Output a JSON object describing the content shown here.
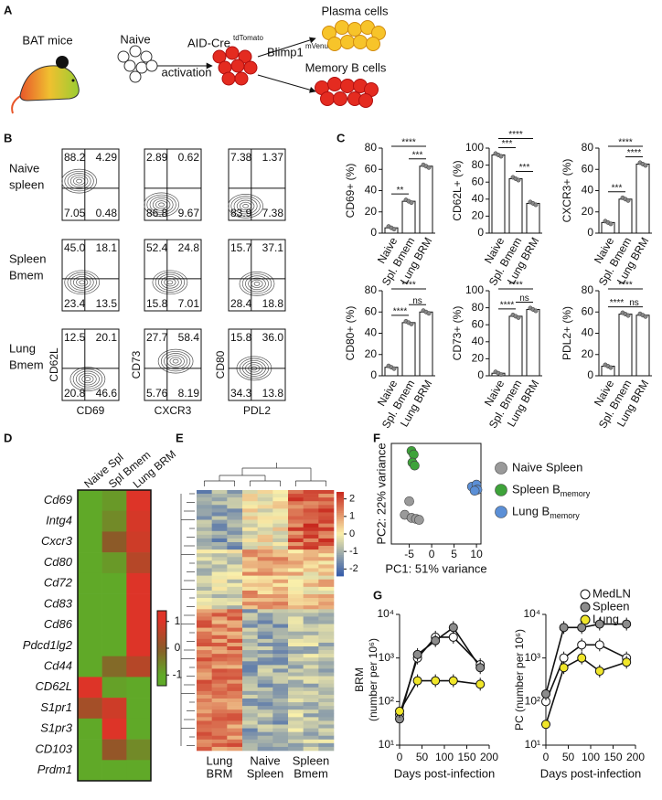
{
  "panel_a": {
    "label": "A",
    "mouse": "BAT mice",
    "naive": "Naive",
    "aid_cre": "AID-Cre",
    "aid_cre_sup": "tdTomato",
    "activation": "activation",
    "blimp": "Blimp1",
    "blimp_sup": "mVenus",
    "plasma": "Plasma cells",
    "memory": "Memory B cells"
  },
  "panel_b": {
    "label": "B",
    "rows": [
      {
        "name": [
          "Naive",
          "spleen"
        ],
        "plots": [
          [
            "88.2",
            "4.29",
            "7.05",
            "0.48"
          ],
          [
            "2.89",
            "0.62",
            "86.8",
            "9.67"
          ],
          [
            "7.38",
            "1.37",
            "83.9",
            "7.38"
          ]
        ]
      },
      {
        "name": [
          "Spleen",
          "Bmem"
        ],
        "plots": [
          [
            "45.0",
            "18.1",
            "23.4",
            "13.5"
          ],
          [
            "52.4",
            "24.8",
            "15.8",
            "7.01"
          ],
          [
            "15.7",
            "37.1",
            "28.4",
            "18.8"
          ]
        ]
      },
      {
        "name": [
          "Lung",
          "Bmem"
        ],
        "plots": [
          [
            "12.5",
            "20.1",
            "20.8",
            "46.6"
          ],
          [
            "27.7",
            "58.4",
            "5.76",
            "8.19"
          ],
          [
            "15.8",
            "36.0",
            "34.3",
            "13.8"
          ]
        ]
      }
    ],
    "y_labels": [
      "CD62L",
      "CD73",
      "CD80"
    ],
    "x_labels": [
      "CD69",
      "CXCR3",
      "PDL2"
    ]
  },
  "panel_c": {
    "label": "C",
    "charts": [
      {
        "type": "bar",
        "ylabel": "CD69+ (%)",
        "categories": [
          "Naive",
          "Spl. Bmem",
          "Lung BRM"
        ],
        "values": [
          5,
          30,
          63
        ],
        "ylim": [
          0,
          80
        ],
        "yticks": [
          0,
          20,
          40,
          60,
          80
        ],
        "color": "#ffffff",
        "significance": [
          "**",
          "***",
          "****"
        ]
      },
      {
        "type": "bar",
        "ylabel": "CD62L+ (%)",
        "categories": [
          "Naive",
          "Spl. Bmem",
          "Lung BRM"
        ],
        "values": [
          92,
          64,
          35
        ],
        "ylim": [
          0,
          100
        ],
        "yticks": [
          0,
          20,
          40,
          60,
          80,
          100
        ],
        "color": "#ffffff",
        "significance": [
          "***",
          "***",
          "****"
        ]
      },
      {
        "type": "bar",
        "ylabel": "CXCR3+ (%)",
        "categories": [
          "Naive",
          "Spl. Bmem",
          "Lung BRM"
        ],
        "values": [
          10,
          32,
          65
        ],
        "ylim": [
          0,
          80
        ],
        "yticks": [
          0,
          20,
          40,
          60,
          80
        ],
        "color": "#ffffff",
        "significance": [
          "***",
          "****",
          "****"
        ]
      },
      {
        "type": "bar",
        "ylabel": "CD80+ (%)",
        "categories": [
          "Naive",
          "Spl. Bmem",
          "Lung BRM"
        ],
        "values": [
          8,
          50,
          60
        ],
        "ylim": [
          0,
          80
        ],
        "yticks": [
          0,
          20,
          40,
          60,
          80
        ],
        "color": "#ffffff",
        "significance": [
          "****",
          "ns",
          "****"
        ]
      },
      {
        "type": "bar",
        "ylabel": "CD73+ (%)",
        "categories": [
          "Naive",
          "Spl. Bmem",
          "Lung BRM"
        ],
        "values": [
          3,
          70,
          78
        ],
        "ylim": [
          0,
          100
        ],
        "yticks": [
          0,
          20,
          40,
          60,
          80,
          100
        ],
        "color": "#ffffff",
        "significance": [
          "****",
          "ns",
          "****"
        ]
      },
      {
        "type": "bar",
        "ylabel": "PDL2+ (%)",
        "categories": [
          "Naive",
          "Spl. Bmem",
          "Lung BRM"
        ],
        "values": [
          9,
          58,
          57
        ],
        "ylim": [
          0,
          80
        ],
        "yticks": [
          0,
          20,
          40,
          60,
          80
        ],
        "color": "#ffffff",
        "significance": [
          "****",
          "ns",
          "****"
        ]
      }
    ]
  },
  "panel_d": {
    "label": "D",
    "type": "heatmap",
    "columns": [
      "Naive Spl",
      "Spl Bmem",
      "Lung BRM"
    ],
    "genes": [
      "Cd69",
      "Intg4",
      "Cxcr3",
      "Cd80",
      "Cd72",
      "Cd83",
      "Cd86",
      "Pdcd1lg2",
      "Cd44",
      "CD62L",
      "S1pr1",
      "S1pr3",
      "CD103",
      "Prdm1"
    ],
    "values": [
      [
        -1,
        -0.8,
        1
      ],
      [
        -1,
        -0.6,
        0.9
      ],
      [
        -1,
        0,
        0.8
      ],
      [
        -1,
        -0.8,
        0.5
      ],
      [
        -1,
        -1,
        1
      ],
      [
        -1,
        -1,
        1
      ],
      [
        -1,
        -1,
        1
      ],
      [
        -1,
        -1,
        1
      ],
      [
        -1,
        -0.2,
        0.5
      ],
      [
        1,
        -0.9,
        -1
      ],
      [
        0.3,
        0.8,
        -1
      ],
      [
        -1,
        1,
        -1
      ],
      [
        -1,
        0.1,
        -0.6
      ],
      [
        -1,
        -1,
        -1
      ]
    ],
    "clim": [
      -1.4,
      1.4
    ],
    "colorbar_ticks": [
      1,
      0,
      -1
    ]
  },
  "panel_e": {
    "label": "E",
    "columns": [
      [
        "Lung",
        "BRM"
      ],
      [
        "Naive",
        "Spleen"
      ],
      [
        "Spleen",
        "Bmem"
      ]
    ],
    "clim": [
      -2.4,
      2.4
    ],
    "colorbar_ticks": [
      2,
      1,
      0,
      -1,
      -2
    ]
  },
  "panel_f": {
    "label": "F",
    "type": "scatter",
    "xlabel": "PC1: 51% variance",
    "ylabel": "PC2: 22% variance",
    "xlim": [
      -9,
      11
    ],
    "ylim": [
      -10,
      10
    ],
    "xticks": [
      -5,
      0,
      5,
      10
    ],
    "series": [
      {
        "name": "Naive Spleen",
        "color": "#9a9a9a",
        "x": [
          -5,
          -6,
          -4.5,
          -3.5,
          -2.8
        ],
        "y": [
          -1.5,
          -4.2,
          -4.8,
          -5,
          -5.2
        ]
      },
      {
        "name": "Spleen B",
        "subscript": "memory",
        "color": "#3ea33a",
        "x": [
          -4.5,
          -4,
          -4.3,
          -3.8
        ],
        "y": [
          8.5,
          7.8,
          6.2,
          5.6
        ]
      },
      {
        "name": "Lung B",
        "subscript": "memory",
        "color": "#5b8fd6",
        "x": [
          9,
          10,
          10.2,
          9.6
        ],
        "y": [
          1.4,
          1.8,
          0.8,
          0.6
        ]
      }
    ]
  },
  "panel_g": {
    "label": "G",
    "charts": [
      {
        "type": "line",
        "ylabel": [
          "BRM",
          "(number per 10⁶)"
        ],
        "xlabel": "Days post-infection",
        "log_y": true,
        "xlim": [
          0,
          200
        ],
        "ylim": [
          10,
          10000
        ],
        "xticks": [
          0,
          50,
          100,
          150,
          200
        ],
        "yticks": [
          {
            "value": 10,
            "label": "10¹"
          },
          {
            "value": 100,
            "label": "10²"
          },
          {
            "value": 1000,
            "label": "10³"
          },
          {
            "value": 10000,
            "label": "10⁴"
          }
        ],
        "x": [
          0,
          40,
          80,
          120,
          180
        ],
        "series": [
          {
            "name": "MedLN",
            "color": "#ffffff",
            "values": [
              50,
              1000,
              3000,
              3000,
              700
            ]
          },
          {
            "name": "Spleen",
            "color": "#8c8c8c",
            "values": [
              40,
              1200,
              2500,
              5000,
              600
            ]
          },
          {
            "name": "Lung",
            "color": "#f0e62a",
            "values": [
              60,
              300,
              300,
              300,
              250
            ]
          }
        ]
      },
      {
        "type": "line",
        "ylabel": [
          "PC (number per 10⁶)"
        ],
        "xlabel": "Days post-infection",
        "log_y": true,
        "xlim": [
          0,
          200
        ],
        "ylim": [
          10,
          10000
        ],
        "xticks": [
          0,
          50,
          100,
          150,
          200
        ],
        "yticks": [
          {
            "value": 10,
            "label": "10¹"
          },
          {
            "value": 100,
            "label": "10²"
          },
          {
            "value": 1000,
            "label": "10³"
          },
          {
            "value": 10000,
            "label": "10⁴"
          }
        ],
        "x": [
          0,
          40,
          80,
          120,
          180
        ],
        "series": [
          {
            "name": "MedLN",
            "color": "#ffffff",
            "values": [
              100,
              1000,
              2000,
              2000,
              1000
            ]
          },
          {
            "name": "Spleen",
            "color": "#8c8c8c",
            "values": [
              150,
              5000,
              5000,
              6000,
              6000
            ]
          },
          {
            "name": "Lung",
            "color": "#f0e62a",
            "values": [
              30,
              600,
              1000,
              500,
              800
            ]
          }
        ]
      }
    ]
  }
}
